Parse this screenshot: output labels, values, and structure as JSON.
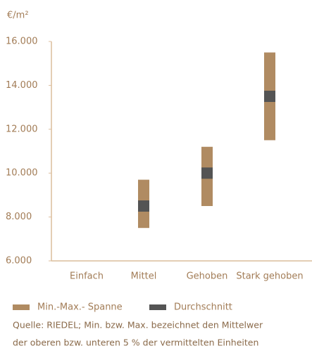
{
  "chart_data": {
    "type": "range_bar",
    "ylabel": "€/m²",
    "categories": [
      "Einfach",
      "Mittel",
      "Gehoben",
      "Stark gehoben"
    ],
    "series": [
      {
        "name": "Min.-Max.- Spanne",
        "color": "#b08b62",
        "low": [
          null,
          7500,
          8500,
          11500
        ],
        "high": [
          null,
          9700,
          11200,
          15500
        ]
      },
      {
        "name": "Durchschnitt",
        "color": "#545454",
        "values": [
          null,
          8500,
          10000,
          13500
        ]
      }
    ],
    "ylim": [
      6000,
      16000
    ],
    "yticks": [
      {
        "value": 6000,
        "label": "6.000"
      },
      {
        "value": 8000,
        "label": "8.000"
      },
      {
        "value": 10000,
        "label": "10.000"
      },
      {
        "value": 12000,
        "label": "12.000"
      },
      {
        "value": 14000,
        "label": "14.000"
      },
      {
        "value": 16000,
        "label": "16.000"
      }
    ],
    "grid": false,
    "notes": [
      "Quelle: RIEDEL; Min. bzw. Max. bezeichnet den Mittelwer",
      "der oberen bzw. unteren 5 % der vermittelten Einheiten"
    ]
  }
}
